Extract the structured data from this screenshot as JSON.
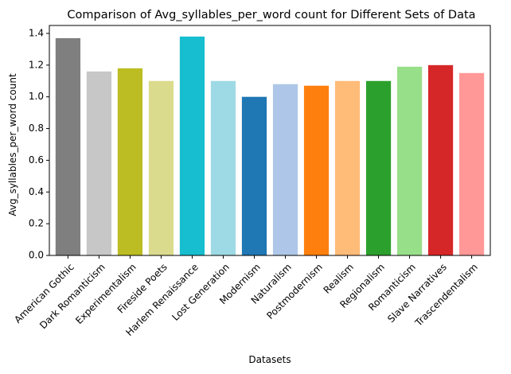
{
  "chart_data": {
    "type": "bar",
    "title": "Comparison of Avg_syllables_per_word count for Different Sets of Data",
    "xlabel": "Datasets",
    "ylabel": "Avg_syllables_per_word count",
    "categories": [
      "American Gothic",
      "Dark Romanticism",
      "Experimentalism",
      "Fireside Poets",
      "Harlem Renaissance",
      "Lost Generation",
      "Modernism",
      "Naturalism",
      "Postmodernism",
      "Realism",
      "Regionalism",
      "Romanticism",
      "Slave Narratives",
      "Trascendentalism"
    ],
    "values": [
      1.37,
      1.16,
      1.18,
      1.1,
      1.38,
      1.1,
      1.0,
      1.08,
      1.07,
      1.1,
      1.1,
      1.19,
      1.2,
      1.15
    ],
    "colors": [
      "#7f7f7f",
      "#c7c7c7",
      "#bcbd22",
      "#dbdb8d",
      "#17becf",
      "#9edae5",
      "#1f77b4",
      "#aec7e8",
      "#ff7f0e",
      "#ffbb78",
      "#2ca02c",
      "#98df8a",
      "#d62728",
      "#ff9896"
    ],
    "ylim": [
      0,
      1.45
    ],
    "yticks": [
      "0.0",
      "0.2",
      "0.4",
      "0.6",
      "0.8",
      "1.0",
      "1.2",
      "1.4"
    ],
    "grid": false,
    "legend": "none"
  }
}
